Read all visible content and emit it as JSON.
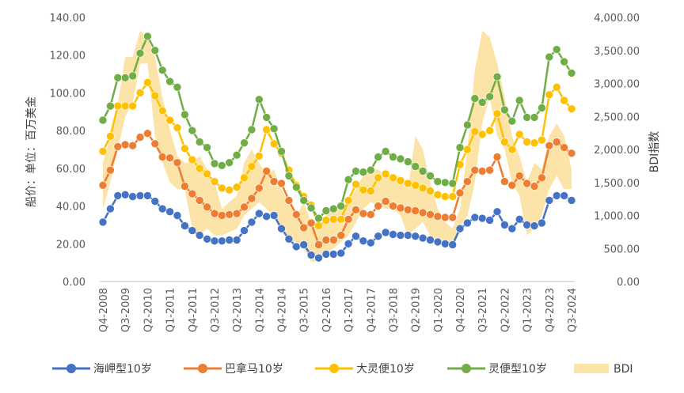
{
  "chart_data": {
    "type": "line",
    "title": "",
    "ylabel": "船价：单位：百万美金",
    "y2label": "BDI指数",
    "ylim": [
      0,
      140
    ],
    "y2lim": [
      0,
      4000
    ],
    "y_ticks": [
      "0.00",
      "20.00",
      "40.00",
      "60.00",
      "80.00",
      "100.00",
      "120.00",
      "140.00"
    ],
    "y2_ticks": [
      "0.00",
      "500.00",
      "1,000.00",
      "1,500.00",
      "2,000.00",
      "2,500.00",
      "3,000.00",
      "3,500.00",
      "4,000.00"
    ],
    "x": [
      "Q4-2008",
      "Q1-2009",
      "Q2-2009",
      "Q3-2009",
      "Q4-2009",
      "Q1-2010",
      "Q2-2010",
      "Q3-2010",
      "Q4-2010",
      "Q1-2011",
      "Q2-2011",
      "Q3-2011",
      "Q4-2011",
      "Q1-2012",
      "Q2-2012",
      "Q3-2012",
      "Q4-2012",
      "Q1-2013",
      "Q2-2013",
      "Q3-2013",
      "Q4-2013",
      "Q1-2014",
      "Q2-2014",
      "Q3-2014",
      "Q4-2014",
      "Q1-2015",
      "Q2-2015",
      "Q3-2015",
      "Q4-2015",
      "Q1-2016",
      "Q2-2016",
      "Q3-2016",
      "Q4-2016",
      "Q1-2017",
      "Q2-2017",
      "Q3-2017",
      "Q4-2017",
      "Q1-2018",
      "Q2-2018",
      "Q3-2018",
      "Q4-2018",
      "Q1-2019",
      "Q2-2019",
      "Q3-2019",
      "Q4-2019",
      "Q1-2020",
      "Q2-2020",
      "Q3-2020",
      "Q4-2020",
      "Q1-2021",
      "Q2-2021",
      "Q3-2021",
      "Q4-2021",
      "Q1-2022",
      "Q2-2022",
      "Q3-2022",
      "Q4-2022",
      "Q1-2023",
      "Q2-2023",
      "Q3-2023",
      "Q4-2023",
      "Q1-2024",
      "Q2-2024",
      "Q3-2024"
    ],
    "x_tick_labels": [
      "Q4-2008",
      "Q3-2009",
      "Q2-2010",
      "Q1-2011",
      "Q4-2011",
      "Q3-2012",
      "Q2-2013",
      "Q1-2014",
      "Q4-2014",
      "Q3-2015",
      "Q2-2016",
      "Q1-2017",
      "Q4-2017",
      "Q3-2018",
      "Q2-2019",
      "Q1-2020",
      "Q4-2020",
      "Q3-2021",
      "Q2-2022",
      "Q1-2023",
      "Q4-2023",
      "Q3-2024"
    ],
    "bdi": {
      "name": "BDI",
      "color": "#FCE4A8",
      "low": [
        1100,
        1500,
        2000,
        2500,
        2700,
        3300,
        3300,
        2200,
        1800,
        1500,
        1400,
        1400,
        800,
        700,
        800,
        700,
        700,
        750,
        800,
        1000,
        1100,
        1200,
        1100,
        1000,
        800,
        600,
        600,
        500,
        300,
        300,
        450,
        500,
        600,
        700,
        900,
        1100,
        1200,
        1150,
        1100,
        1100,
        1000,
        700,
        800,
        900,
        700,
        600,
        500,
        600,
        800,
        1000,
        1500,
        2400,
        2800,
        2200,
        2000,
        1500,
        1300,
        700,
        800,
        1000,
        1400,
        1600,
        1400,
        1400
      ],
      "high": [
        1800,
        2200,
        2700,
        3400,
        3400,
        3800,
        3700,
        3400,
        2800,
        2300,
        1900,
        1800,
        1800,
        1900,
        1700,
        1500,
        1100,
        1200,
        1300,
        1800,
        2000,
        1800,
        1600,
        1700,
        1400,
        1200,
        1000,
        1200,
        900,
        800,
        1000,
        1100,
        1100,
        1200,
        1400,
        1600,
        1700,
        1700,
        1600,
        1600,
        1600,
        1400,
        2200,
        2000,
        1500,
        1100,
        900,
        800,
        1100,
        2000,
        3200,
        3800,
        3700,
        3300,
        2800,
        2200,
        1900,
        1500,
        1800,
        1700,
        2200,
        2400,
        2200,
        1700
      ]
    },
    "series": [
      {
        "name": "海岬型10岁",
        "color": "#4472C4",
        "values": [
          31.5,
          38.5,
          45.5,
          46,
          45,
          45.5,
          45.5,
          42.5,
          38.5,
          37,
          35,
          29.5,
          27,
          24.5,
          22.5,
          21.5,
          21.5,
          22,
          22,
          27,
          31.5,
          36,
          34.5,
          35,
          28,
          22.5,
          18.5,
          19.5,
          14,
          12.5,
          14.5,
          14.5,
          15,
          20,
          24,
          21.5,
          20.5,
          24,
          26,
          25,
          24.5,
          24.5,
          24,
          23,
          22,
          21,
          20,
          19.5,
          28,
          31,
          34,
          33.5,
          32.5,
          37,
          30,
          28,
          33,
          30,
          29.5,
          31,
          43,
          45.5,
          45.5,
          43
        ]
      },
      {
        "name": "巴拿马10岁",
        "color": "#ED7D31",
        "values": [
          51,
          59,
          71.5,
          72.5,
          72,
          76.5,
          78.5,
          73,
          66,
          65.5,
          63,
          50.5,
          46.5,
          43,
          39.5,
          36,
          35,
          35.5,
          36,
          39.5,
          44,
          49.5,
          58.5,
          53,
          52,
          43,
          35.5,
          28.5,
          31,
          19.5,
          22,
          22,
          24.5,
          33,
          38,
          36,
          35.5,
          40,
          42.5,
          40,
          39,
          38,
          37.5,
          36.5,
          35.5,
          34.5,
          34,
          34,
          47,
          53,
          59,
          58.5,
          59,
          66,
          53,
          51,
          56,
          52,
          50.5,
          55,
          72,
          74,
          71,
          68
        ]
      },
      {
        "name": "大灵便10岁",
        "color": "#FFC000",
        "values": [
          69,
          77,
          93,
          93,
          93,
          100,
          105.5,
          98.5,
          90.5,
          85.5,
          81.5,
          70.5,
          64.5,
          60,
          57,
          53,
          49.5,
          48.5,
          50,
          55,
          61,
          66.5,
          80.5,
          73,
          68,
          59,
          51,
          45,
          40.5,
          29.5,
          32.5,
          33,
          33,
          43,
          51.5,
          48.5,
          48,
          55,
          57,
          55,
          53.5,
          52,
          51,
          49.5,
          48,
          46,
          45,
          45,
          62,
          70,
          79.5,
          78,
          80,
          89,
          74,
          70,
          78,
          74,
          73.5,
          75,
          99,
          103,
          96,
          91.5
        ]
      },
      {
        "name": "灵便型10岁",
        "color": "#70AD47",
        "values": [
          85.5,
          93,
          108,
          108,
          109,
          121,
          130,
          122.5,
          112,
          106,
          103,
          88.5,
          80,
          74,
          71,
          62.5,
          61.5,
          63,
          67,
          73.5,
          80.5,
          96.5,
          87,
          81,
          69,
          56,
          50,
          43,
          39,
          33.5,
          37.5,
          38.5,
          40,
          54,
          58.5,
          58,
          59,
          66,
          69,
          66,
          65,
          63.5,
          61,
          58.5,
          56,
          53,
          52.5,
          52,
          71,
          83,
          97,
          95,
          98,
          108.5,
          91,
          85,
          96,
          87,
          87,
          92,
          119,
          123,
          116.5,
          110.5
        ]
      }
    ]
  }
}
